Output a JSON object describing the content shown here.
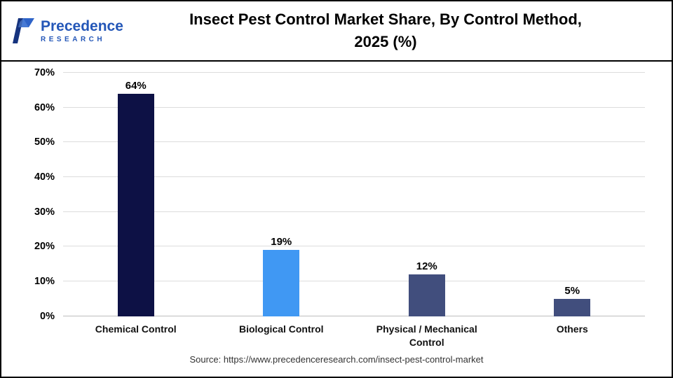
{
  "header": {
    "logo_name": "Precedence",
    "logo_sub": "RESEARCH",
    "title_line1": "Insect Pest Control Market Share, By Control Method,",
    "title_line2": "2025 (%)"
  },
  "chart_data": {
    "type": "bar",
    "title": "Insect Pest Control Market Share, By Control Method, 2025 (%)",
    "categories": [
      "Chemical Control",
      "Biological Control",
      "Physical / Mechanical Control",
      "Others"
    ],
    "values": [
      64,
      19,
      12,
      5
    ],
    "labels": [
      "64%",
      "19%",
      "12%",
      "5%"
    ],
    "colors": [
      "#0D1145",
      "#4098F3",
      "#414E7D",
      "#414E7D"
    ],
    "xlabel": "",
    "ylabel": "",
    "ylim": [
      0,
      70
    ],
    "yticks": [
      "0%",
      "10%",
      "20%",
      "30%",
      "40%",
      "50%",
      "60%",
      "70%"
    ],
    "grid": true,
    "legend": "none"
  },
  "footer": {
    "source": "Source: https://www.precedenceresearch.com/insect-pest-control-market"
  }
}
